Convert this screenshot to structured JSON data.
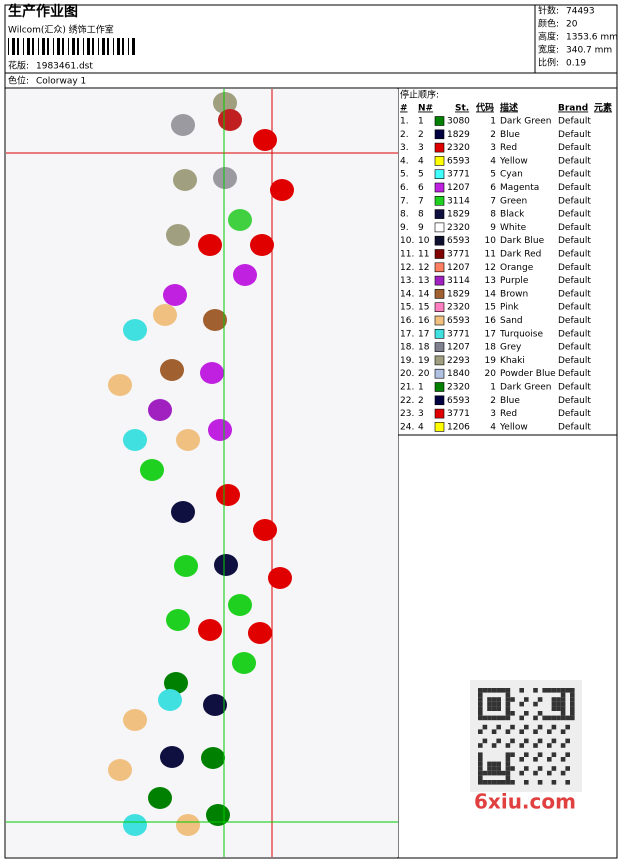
{
  "header": {
    "title": "生产作业图",
    "subtitle": "Wilcom(汇众) 绣饰工作室",
    "design_label": "花版:",
    "design": "1983461.dst",
    "colorway_label": "色位:",
    "colorway": "Colorway 1"
  },
  "info": [
    {
      "label": "针数:",
      "value": "74493"
    },
    {
      "label": "颜色:",
      "value": "20"
    },
    {
      "label": "高度:",
      "value": "1353.6 mm"
    },
    {
      "label": "宽度:",
      "value": "340.7 mm"
    },
    {
      "label": "比例:",
      "value": "0.19"
    }
  ],
  "table": {
    "title": "停止顺序:",
    "columns": [
      "#",
      "N#",
      "St.",
      "代码",
      "描述",
      "Brand",
      "元素"
    ],
    "rows": [
      [
        "1.",
        "1",
        "#008000",
        "3080",
        "1",
        "Dark Green",
        "Default"
      ],
      [
        "2.",
        "2",
        "#000040",
        "1829",
        "2",
        "Blue",
        "Default"
      ],
      [
        "3.",
        "3",
        "#e00000",
        "2320",
        "3",
        "Red",
        "Default"
      ],
      [
        "4.",
        "4",
        "#ffff00",
        "6593",
        "4",
        "Yellow",
        "Default"
      ],
      [
        "5.",
        "5",
        "#40ffff",
        "3771",
        "5",
        "Cyan",
        "Default"
      ],
      [
        "6.",
        "6",
        "#c020e0",
        "1207",
        "6",
        "Magenta",
        "Default"
      ],
      [
        "7.",
        "7",
        "#20d020",
        "3114",
        "7",
        "Green",
        "Default"
      ],
      [
        "8.",
        "8",
        "#101040",
        "1829",
        "8",
        "Black",
        "Default"
      ],
      [
        "9.",
        "9",
        "#ffffff",
        "2320",
        "9",
        "White",
        "Default"
      ],
      [
        "10.",
        "10",
        "#101030",
        "6593",
        "10",
        "Dark Blue",
        "Default"
      ],
      [
        "11.",
        "11",
        "#800000",
        "3771",
        "11",
        "Dark Red",
        "Default"
      ],
      [
        "12.",
        "12",
        "#ff8060",
        "1207",
        "12",
        "Orange",
        "Default"
      ],
      [
        "13.",
        "13",
        "#a020c0",
        "3114",
        "13",
        "Purple",
        "Default"
      ],
      [
        "14.",
        "14",
        "#a06030",
        "1829",
        "14",
        "Brown",
        "Default"
      ],
      [
        "15.",
        "15",
        "#ff80c0",
        "2320",
        "15",
        "Pink",
        "Default"
      ],
      [
        "16.",
        "16",
        "#f0c080",
        "6593",
        "16",
        "Sand",
        "Default"
      ],
      [
        "17.",
        "17",
        "#40e0e0",
        "3771",
        "17",
        "Turquoise",
        "Default"
      ],
      [
        "18.",
        "18",
        "#808090",
        "1207",
        "18",
        "Grey",
        "Default"
      ],
      [
        "19.",
        "19",
        "#a0a080",
        "2293",
        "19",
        "Khaki",
        "Default"
      ],
      [
        "20.",
        "20",
        "#b0c0e0",
        "1840",
        "20",
        "Powder Blue",
        "Default"
      ],
      [
        "21.",
        "1",
        "#008000",
        "2320",
        "1",
        "Dark Green",
        "Default"
      ],
      [
        "22.",
        "2",
        "#000040",
        "6593",
        "2",
        "Blue",
        "Default"
      ],
      [
        "23.",
        "3",
        "#e00000",
        "3771",
        "3",
        "Red",
        "Default"
      ],
      [
        "24.",
        "4",
        "#ffff00",
        "1206",
        "4",
        "Yellow",
        "Default"
      ]
    ]
  },
  "watermark": "6xiu.com"
}
